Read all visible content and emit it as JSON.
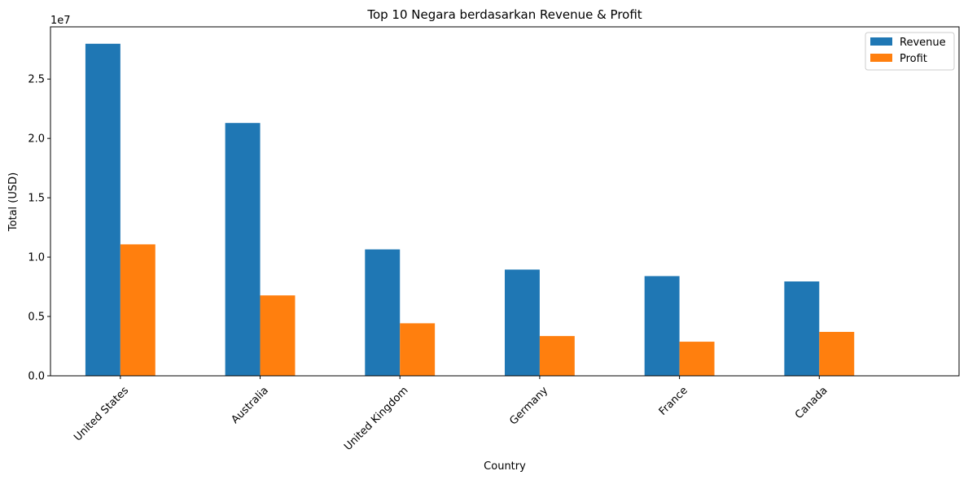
{
  "chart_data": {
    "type": "bar",
    "title": "Top 10 Negara berdasarkan Revenue & Profit",
    "xlabel": "Country",
    "ylabel": "Total (USD)",
    "y_scale_label": "1e7",
    "ylim": [
      0,
      29400000
    ],
    "yticks": [
      0,
      5000000,
      10000000,
      15000000,
      20000000,
      25000000
    ],
    "ytick_labels": [
      "0.0",
      "0.5",
      "1.0",
      "1.5",
      "2.0",
      "2.5"
    ],
    "categories": [
      "United States",
      "Australia",
      "United Kingdom",
      "Germany",
      "France",
      "Canada"
    ],
    "series": [
      {
        "name": "Revenue",
        "color": "#1f77b4",
        "values": [
          27975000,
          21300000,
          10650000,
          8950000,
          8400000,
          7950000
        ]
      },
      {
        "name": "Profit",
        "color": "#ff7f0e",
        "values": [
          11075000,
          6775000,
          4425000,
          3350000,
          2875000,
          3700000
        ]
      }
    ],
    "grid": false,
    "legend_position": "top-right"
  }
}
